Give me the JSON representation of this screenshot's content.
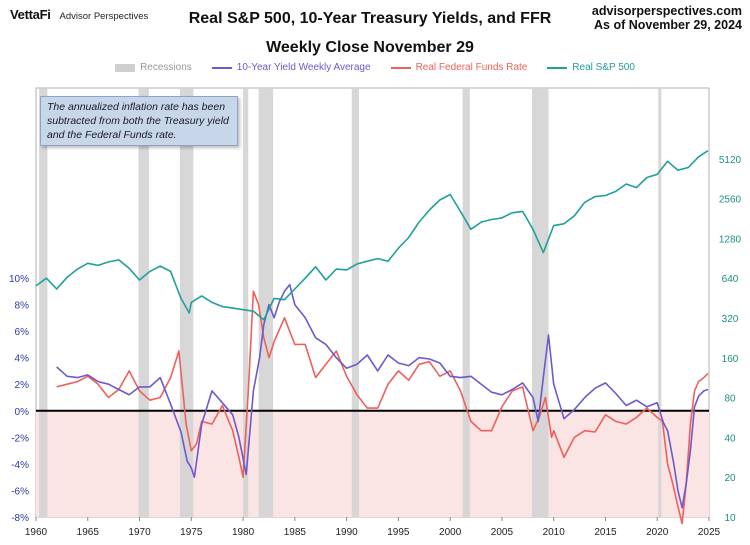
{
  "header": {
    "brand": "VettaFi",
    "brand_sub": "Advisor Perspectives",
    "title": "Real S&P 500, 10-Year Treasury Yields, and FFR",
    "subtitle": "Weekly Close November 29",
    "site": "advisorperspectives.com",
    "asof": "As of November 29, 2024"
  },
  "legend": {
    "recessions": "Recessions",
    "yield": "10-Year Yield Weekly Average",
    "ffr": "Real Federal Funds Rate",
    "sp": "Real S&P 500"
  },
  "note": "The annualized inflation rate has been subtracted from both the Treasury yield and the Federal Funds rate.",
  "colors": {
    "yield": "#6a5acd",
    "ffr": "#f0605a",
    "sp": "#20a09a",
    "recession": "#d3d3d3",
    "negative_band": "#fbe4e4",
    "left_axis": "#2a3aa8",
    "right_axis": "#1e8f86"
  },
  "chart_data": {
    "type": "line",
    "x_range": [
      1960,
      2025
    ],
    "x_ticks": [
      1960,
      1965,
      1970,
      1975,
      1980,
      1985,
      1990,
      1995,
      2000,
      2005,
      2010,
      2015,
      2020,
      2025
    ],
    "left_axis": {
      "range": [
        -8,
        10
      ],
      "ticks": [
        -8,
        -6,
        -4,
        -2,
        0,
        2,
        4,
        6,
        8,
        10
      ],
      "tick_labels": [
        "-8%",
        "-6%",
        "-4%",
        "-2%",
        "0%",
        "2%",
        "4%",
        "6%",
        "8%",
        "10%"
      ]
    },
    "right_axis": {
      "scale": "log",
      "range": [
        10,
        10240
      ],
      "ticks": [
        10,
        20,
        40,
        80,
        160,
        320,
        640,
        1280,
        2560,
        5120
      ]
    },
    "recessions": [
      [
        1960.3,
        1961.1
      ],
      [
        1969.9,
        1970.9
      ],
      [
        1973.9,
        1975.2
      ],
      [
        1980.0,
        1980.5
      ],
      [
        1981.5,
        1982.9
      ],
      [
        1990.5,
        1991.2
      ],
      [
        2001.2,
        2001.9
      ],
      [
        2007.9,
        2009.5
      ],
      [
        2020.1,
        2020.4
      ]
    ],
    "series": [
      {
        "name": "10-Year Yield Weekly Average",
        "axis": "left",
        "points": [
          [
            1962.0,
            3.3
          ],
          [
            1963.0,
            2.6
          ],
          [
            1964.0,
            2.5
          ],
          [
            1965.0,
            2.7
          ],
          [
            1966.0,
            2.2
          ],
          [
            1967.0,
            2.0
          ],
          [
            1968.0,
            1.6
          ],
          [
            1969.0,
            1.2
          ],
          [
            1970.0,
            1.8
          ],
          [
            1971.0,
            1.8
          ],
          [
            1972.0,
            2.5
          ],
          [
            1973.0,
            0.5
          ],
          [
            1974.0,
            -1.6
          ],
          [
            1974.6,
            -3.8
          ],
          [
            1975.0,
            -4.3
          ],
          [
            1975.3,
            -5.0
          ],
          [
            1976.0,
            -1.0
          ],
          [
            1977.0,
            1.5
          ],
          [
            1978.0,
            0.6
          ],
          [
            1979.0,
            -0.3
          ],
          [
            1979.6,
            -2.0
          ],
          [
            1980.0,
            -3.6
          ],
          [
            1980.3,
            -4.8
          ],
          [
            1981.0,
            1.5
          ],
          [
            1981.6,
            4.0
          ],
          [
            1982.0,
            6.5
          ],
          [
            1982.5,
            8.0
          ],
          [
            1983.0,
            7.0
          ],
          [
            1983.5,
            8.2
          ],
          [
            1984.0,
            9.0
          ],
          [
            1984.5,
            9.5
          ],
          [
            1985.0,
            8.0
          ],
          [
            1986.0,
            7.0
          ],
          [
            1987.0,
            5.5
          ],
          [
            1988.0,
            5.0
          ],
          [
            1989.0,
            4.0
          ],
          [
            1990.0,
            3.2
          ],
          [
            1991.0,
            3.5
          ],
          [
            1992.0,
            4.2
          ],
          [
            1993.0,
            3.0
          ],
          [
            1994.0,
            4.2
          ],
          [
            1995.0,
            3.6
          ],
          [
            1996.0,
            3.4
          ],
          [
            1997.0,
            4.0
          ],
          [
            1998.0,
            3.9
          ],
          [
            1999.0,
            3.6
          ],
          [
            2000.0,
            2.6
          ],
          [
            2001.0,
            2.5
          ],
          [
            2002.0,
            2.6
          ],
          [
            2003.0,
            2.0
          ],
          [
            2004.0,
            1.4
          ],
          [
            2005.0,
            1.2
          ],
          [
            2006.0,
            1.6
          ],
          [
            2007.0,
            2.1
          ],
          [
            2008.0,
            1.0
          ],
          [
            2008.5,
            -0.8
          ],
          [
            2009.0,
            2.5
          ],
          [
            2009.5,
            5.7
          ],
          [
            2010.0,
            2.0
          ],
          [
            2011.0,
            -0.6
          ],
          [
            2012.0,
            0.1
          ],
          [
            2013.0,
            1.0
          ],
          [
            2014.0,
            1.7
          ],
          [
            2015.0,
            2.1
          ],
          [
            2016.0,
            1.3
          ],
          [
            2017.0,
            0.4
          ],
          [
            2018.0,
            0.8
          ],
          [
            2019.0,
            0.3
          ],
          [
            2020.0,
            0.6
          ],
          [
            2020.6,
            -0.9
          ],
          [
            2021.0,
            -1.5
          ],
          [
            2021.6,
            -4.0
          ],
          [
            2022.0,
            -6.0
          ],
          [
            2022.4,
            -7.3
          ],
          [
            2022.8,
            -5.5
          ],
          [
            2023.2,
            -3.0
          ],
          [
            2023.6,
            0.3
          ],
          [
            2024.0,
            1.1
          ],
          [
            2024.5,
            1.5
          ],
          [
            2024.9,
            1.6
          ]
        ]
      },
      {
        "name": "Real Federal Funds Rate",
        "axis": "left",
        "points": [
          [
            1962.0,
            1.8
          ],
          [
            1963.0,
            2.0
          ],
          [
            1964.0,
            2.2
          ],
          [
            1965.0,
            2.6
          ],
          [
            1966.0,
            2.0
          ],
          [
            1967.0,
            1.0
          ],
          [
            1968.0,
            1.6
          ],
          [
            1969.0,
            3.0
          ],
          [
            1970.0,
            1.5
          ],
          [
            1971.0,
            0.8
          ],
          [
            1972.0,
            1.0
          ],
          [
            1973.0,
            2.5
          ],
          [
            1973.8,
            4.5
          ],
          [
            1974.5,
            -1.0
          ],
          [
            1975.0,
            -3.0
          ],
          [
            1975.5,
            -2.5
          ],
          [
            1976.0,
            -0.8
          ],
          [
            1977.0,
            -1.0
          ],
          [
            1978.0,
            0.4
          ],
          [
            1979.0,
            -1.5
          ],
          [
            1979.6,
            -3.5
          ],
          [
            1980.0,
            -5.0
          ],
          [
            1980.5,
            1.5
          ],
          [
            1981.0,
            9.0
          ],
          [
            1981.5,
            8.0
          ],
          [
            1982.0,
            5.5
          ],
          [
            1982.5,
            4.0
          ],
          [
            1983.0,
            5.2
          ],
          [
            1984.0,
            7.0
          ],
          [
            1985.0,
            5.0
          ],
          [
            1986.0,
            5.0
          ],
          [
            1987.0,
            2.5
          ],
          [
            1988.0,
            3.5
          ],
          [
            1989.0,
            4.5
          ],
          [
            1990.0,
            2.6
          ],
          [
            1991.0,
            1.2
          ],
          [
            1992.0,
            0.2
          ],
          [
            1993.0,
            0.2
          ],
          [
            1994.0,
            2.0
          ],
          [
            1995.0,
            3.0
          ],
          [
            1996.0,
            2.3
          ],
          [
            1997.0,
            3.5
          ],
          [
            1998.0,
            3.7
          ],
          [
            1999.0,
            2.6
          ],
          [
            2000.0,
            3.0
          ],
          [
            2001.0,
            1.5
          ],
          [
            2002.0,
            -0.8
          ],
          [
            2003.0,
            -1.5
          ],
          [
            2004.0,
            -1.5
          ],
          [
            2005.0,
            0.3
          ],
          [
            2006.0,
            1.5
          ],
          [
            2007.0,
            1.8
          ],
          [
            2008.0,
            -1.5
          ],
          [
            2008.6,
            -0.5
          ],
          [
            2009.2,
            1.0
          ],
          [
            2009.8,
            -2.0
          ],
          [
            2010.0,
            -1.5
          ],
          [
            2011.0,
            -3.5
          ],
          [
            2012.0,
            -2.0
          ],
          [
            2013.0,
            -1.5
          ],
          [
            2014.0,
            -1.6
          ],
          [
            2015.0,
            -0.3
          ],
          [
            2016.0,
            -0.8
          ],
          [
            2017.0,
            -1.0
          ],
          [
            2018.0,
            -0.5
          ],
          [
            2019.0,
            0.2
          ],
          [
            2020.0,
            -0.5
          ],
          [
            2020.5,
            -0.8
          ],
          [
            2021.0,
            -4.0
          ],
          [
            2021.5,
            -5.5
          ],
          [
            2022.0,
            -7.2
          ],
          [
            2022.4,
            -8.5
          ],
          [
            2022.8,
            -5.5
          ],
          [
            2023.2,
            -1.0
          ],
          [
            2023.6,
            1.5
          ],
          [
            2024.0,
            2.2
          ],
          [
            2024.5,
            2.5
          ],
          [
            2024.9,
            2.8
          ]
        ]
      },
      {
        "name": "Real S&P 500",
        "axis": "right",
        "points": [
          [
            1960.0,
            560
          ],
          [
            1961.0,
            640
          ],
          [
            1962.0,
            530
          ],
          [
            1963.0,
            650
          ],
          [
            1964.0,
            750
          ],
          [
            1965.0,
            830
          ],
          [
            1966.0,
            800
          ],
          [
            1967.0,
            850
          ],
          [
            1968.0,
            880
          ],
          [
            1969.0,
            760
          ],
          [
            1970.0,
            620
          ],
          [
            1971.0,
            720
          ],
          [
            1972.0,
            790
          ],
          [
            1973.0,
            720
          ],
          [
            1974.0,
            450
          ],
          [
            1974.8,
            350
          ],
          [
            1975.0,
            420
          ],
          [
            1976.0,
            470
          ],
          [
            1977.0,
            420
          ],
          [
            1978.0,
            390
          ],
          [
            1979.0,
            380
          ],
          [
            1980.0,
            370
          ],
          [
            1981.0,
            360
          ],
          [
            1982.0,
            310
          ],
          [
            1983.0,
            450
          ],
          [
            1984.0,
            440
          ],
          [
            1985.0,
            530
          ],
          [
            1986.0,
            640
          ],
          [
            1987.0,
            780
          ],
          [
            1988.0,
            620
          ],
          [
            1989.0,
            750
          ],
          [
            1990.0,
            740
          ],
          [
            1991.0,
            820
          ],
          [
            1992.0,
            860
          ],
          [
            1993.0,
            900
          ],
          [
            1994.0,
            860
          ],
          [
            1995.0,
            1080
          ],
          [
            1996.0,
            1300
          ],
          [
            1997.0,
            1700
          ],
          [
            1998.0,
            2100
          ],
          [
            1999.0,
            2500
          ],
          [
            2000.0,
            2750
          ],
          [
            2001.0,
            2050
          ],
          [
            2002.0,
            1500
          ],
          [
            2003.0,
            1700
          ],
          [
            2004.0,
            1780
          ],
          [
            2005.0,
            1830
          ],
          [
            2006.0,
            2000
          ],
          [
            2007.0,
            2050
          ],
          [
            2008.0,
            1500
          ],
          [
            2009.0,
            1000
          ],
          [
            2010.0,
            1600
          ],
          [
            2011.0,
            1650
          ],
          [
            2012.0,
            1900
          ],
          [
            2013.0,
            2400
          ],
          [
            2014.0,
            2650
          ],
          [
            2015.0,
            2700
          ],
          [
            2016.0,
            2900
          ],
          [
            2017.0,
            3300
          ],
          [
            2018.0,
            3100
          ],
          [
            2019.0,
            3700
          ],
          [
            2020.0,
            3900
          ],
          [
            2021.0,
            4900
          ],
          [
            2022.0,
            4200
          ],
          [
            2023.0,
            4400
          ],
          [
            2024.0,
            5300
          ],
          [
            2024.9,
            5900
          ]
        ]
      }
    ]
  }
}
